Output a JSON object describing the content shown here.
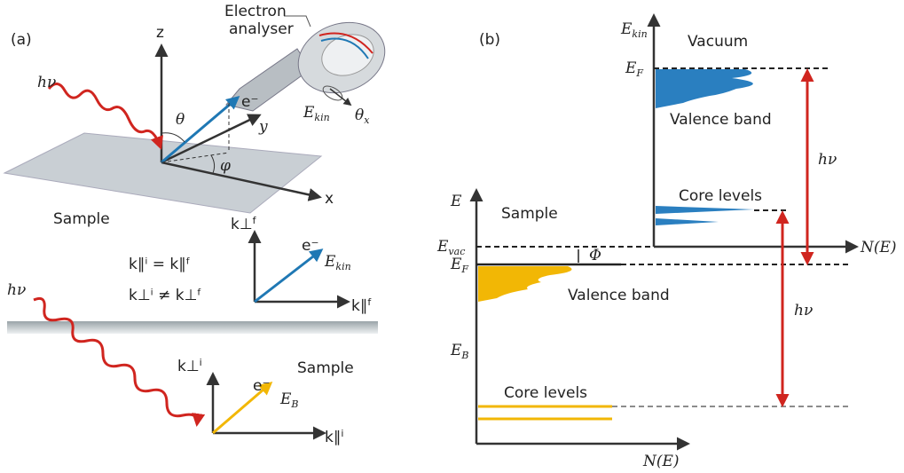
{
  "panel_a": {
    "label": "(a)",
    "analyser": [
      "Electron",
      "analyser"
    ],
    "photon": "hν",
    "z": "z",
    "x": "x",
    "y": "y",
    "theta": "θ",
    "phi": "φ",
    "electron": "e⁻",
    "ekin": {
      "main": "E",
      "sub": "kin"
    },
    "theta_x": {
      "main": "θ",
      "sub": "x"
    },
    "sample": "Sample",
    "eq_parallel": [
      "k∥ⁱ = k∥ᶠ"
    ],
    "eq_perp": [
      "k⊥ⁱ ≠ k⊥ᶠ"
    ],
    "kperp_f": {
      "main": "k⊥",
      "sup": "f"
    },
    "electron_f": "e⁻",
    "ekin_f": {
      "main": "E",
      "sub": "kin"
    },
    "kpar_f": {
      "main": "k∥",
      "sup": "f"
    },
    "photon_bottom": "hν",
    "sample_bottom": "Sample",
    "kperp_i": {
      "main": "k⊥",
      "sup": "i"
    },
    "electron_i": "e⁻",
    "eb": {
      "main": "E",
      "sub": "B"
    },
    "kpar_i": {
      "main": "k∥",
      "sup": "i"
    }
  },
  "panel_b": {
    "label": "(b)",
    "ekin": {
      "main": "E",
      "sub": "kin"
    },
    "vacuum": "Vacuum",
    "ef_vacuum": {
      "main": "E",
      "sub": "F"
    },
    "valence_vacuum": "Valence band",
    "hv_top": "hν",
    "core_vacuum": "Core levels",
    "vacuum_ne": "N(E)",
    "sample_e": "E",
    "sample": "Sample",
    "evac": {
      "main": "E",
      "sub": "vac"
    },
    "phi": "Φ",
    "ef_sample": {
      "main": "E",
      "sub": "F"
    },
    "valence_sample": "Valence band",
    "hv_bottom": "hν",
    "eb": {
      "main": "E",
      "sub": "B"
    },
    "core_sample": "Core levels",
    "sample_ne": "N(E)"
  }
}
